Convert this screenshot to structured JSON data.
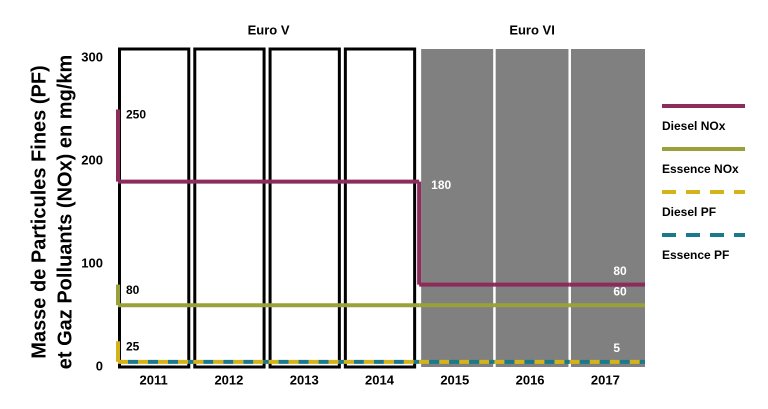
{
  "chart_data": {
    "type": "step",
    "ylabel": [
      "Masse de Particules Fines (PF)",
      "et Gaz Polluants (NOx) en mg/km"
    ],
    "categories": [
      "2011",
      "2012",
      "2013",
      "2014",
      "2015",
      "2016",
      "2017"
    ],
    "groups": [
      {
        "label": "Euro V",
        "span": [
          0,
          3
        ],
        "color": "#ffffff",
        "border": "#000000"
      },
      {
        "label": "Euro VI",
        "span": [
          4,
          6
        ],
        "color": "#808080",
        "border": "#ffffff"
      }
    ],
    "ylim": [
      0,
      300
    ],
    "yticks": [
      0,
      100,
      200,
      300
    ],
    "series": [
      {
        "name": "Diesel NOx",
        "color": "#8b2c5a",
        "dashed": false,
        "start": 250,
        "values": [
          180,
          180,
          180,
          180,
          80,
          80,
          80
        ]
      },
      {
        "name": "Essence NOx",
        "color": "#9aa03a",
        "dashed": false,
        "start": 80,
        "values": [
          60,
          60,
          60,
          60,
          60,
          60,
          60
        ]
      },
      {
        "name": "Diesel PF",
        "color": "#d4b21a",
        "dashed": true,
        "start": 25,
        "values": [
          5,
          5,
          5,
          5,
          5,
          5,
          5
        ]
      },
      {
        "name": "Essence PF",
        "color": "#1a7a8c",
        "dashed": true,
        "show_labels": false,
        "values": [
          5,
          5,
          5,
          5,
          5,
          5,
          5
        ]
      }
    ],
    "legend": "right"
  }
}
